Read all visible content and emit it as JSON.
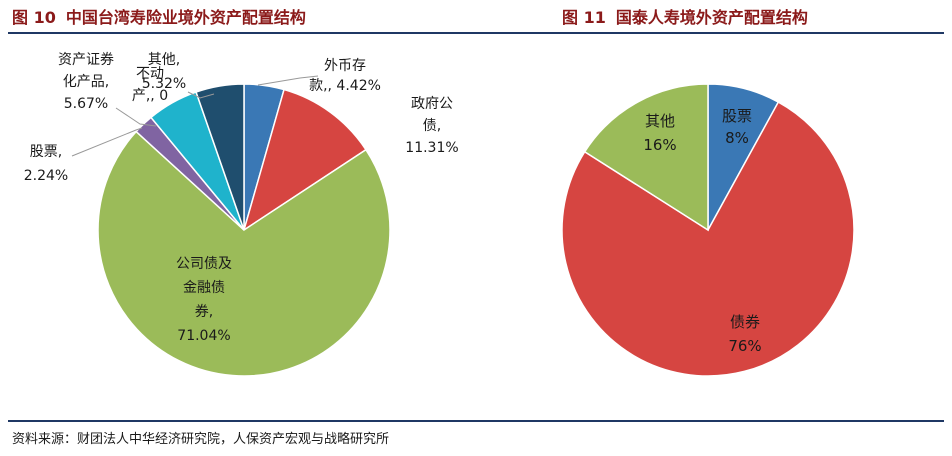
{
  "figures": [
    {
      "number": "图 10",
      "title": "中国台湾寿险业境外资产配置结构"
    },
    {
      "number": "图 11",
      "title": "国泰人寿境外资产配置结构"
    }
  ],
  "source": "资料来源：财团法人中华经济研究院，人保资产宏观与战略研究所",
  "chart_data": [
    {
      "type": "pie",
      "slices": [
        {
          "label": "外币存款",
          "value": 4.42,
          "display": "4.42%",
          "color": "#3a78b5"
        },
        {
          "label": "政府公债",
          "value": 11.31,
          "display": "11.31%",
          "color": "#d64541"
        },
        {
          "label": "公司债及金融债券",
          "value": 71.04,
          "display": "71.04%",
          "color": "#9bbb59"
        },
        {
          "label": "股票",
          "value": 2.24,
          "display": "2.24%",
          "color": "#8064a2"
        },
        {
          "label": "资产证券化产品",
          "value": 5.67,
          "display": "5.67%",
          "color": "#1fb3cc"
        },
        {
          "label": "不动产",
          "value": 0,
          "display": "0",
          "color": "#f79646"
        },
        {
          "label": "其他",
          "value": 5.32,
          "display": "5.32%",
          "color": "#1f4e6e"
        }
      ]
    },
    {
      "type": "pie",
      "slices": [
        {
          "label": "股票",
          "value": 8,
          "display": "8%",
          "color": "#3a78b5"
        },
        {
          "label": "债券",
          "value": 76,
          "display": "76%",
          "color": "#d64541"
        },
        {
          "label": "其他",
          "value": 16,
          "display": "16%",
          "color": "#9bbb59"
        }
      ]
    }
  ]
}
